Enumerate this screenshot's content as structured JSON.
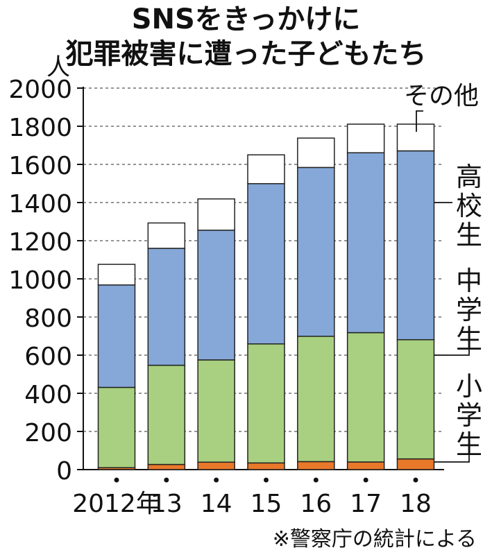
{
  "chart_data": {
    "type": "bar",
    "stacked": true,
    "title": [
      "SNSをきっかけに",
      "犯罪被害に遭った子どもたち"
    ],
    "ylabel": "人",
    "ylim": [
      0,
      2000
    ],
    "yticks": [
      0,
      200,
      400,
      600,
      800,
      1000,
      1200,
      1400,
      1600,
      1800,
      2000
    ],
    "grid": "horizontal-dashed",
    "categories": [
      "2012年",
      "13",
      "14",
      "15",
      "16",
      "17",
      "18"
    ],
    "series": [
      {
        "name": "小学生",
        "color": "#e8782a",
        "values": [
          10,
          27,
          39,
          35,
          42,
          40,
          56
        ]
      },
      {
        "name": "中学生",
        "color": "#a8d080",
        "values": [
          421,
          520,
          536,
          624,
          657,
          678,
          625
        ]
      },
      {
        "name": "高校生",
        "color": "#85a8d8",
        "values": [
          537,
          613,
          680,
          840,
          885,
          943,
          990
        ]
      },
      {
        "name": "その他",
        "color": "#ffffff",
        "values": [
          108,
          133,
          164,
          151,
          154,
          150,
          140
        ]
      }
    ],
    "source_note": "※警察庁の統計による"
  }
}
